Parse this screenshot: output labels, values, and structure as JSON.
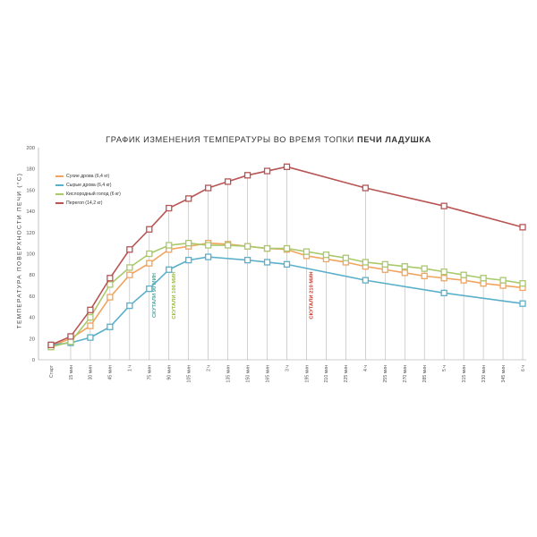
{
  "chart_data": {
    "type": "line",
    "title": "ГРАФИК ИЗМЕНЕНИЯ ТЕМПЕРАТУРЫ ВО ВРЕМЯ ТОПКИ",
    "title_bold": "ПЕЧИ ЛАДУШКА",
    "ylabel": "ТЕМПЕРАТУРА ПОВЕРХНОСТИ ПЕЧИ (°С)",
    "xlabel": "",
    "ylim": [
      0,
      200
    ],
    "yticks": [
      0,
      20,
      40,
      60,
      80,
      100,
      120,
      140,
      160,
      180,
      200
    ],
    "grid": "vertical lines at data points",
    "legend_position": "top-left",
    "x_ticks": [
      {
        "x": 0,
        "label": "Старт"
      },
      {
        "x": 15,
        "label": "15 мин"
      },
      {
        "x": 30,
        "label": "30 мин"
      },
      {
        "x": 45,
        "label": "45 мин"
      },
      {
        "x": 60,
        "label": "1 ч"
      },
      {
        "x": 75,
        "label": "75 мин"
      },
      {
        "x": 90,
        "label": "90 мин"
      },
      {
        "x": 105,
        "label": "105 мин"
      },
      {
        "x": 120,
        "label": "2 ч"
      },
      {
        "x": 135,
        "label": "135 мин"
      },
      {
        "x": 150,
        "label": "150 мин"
      },
      {
        "x": 165,
        "label": "165 мин"
      },
      {
        "x": 180,
        "label": "3 ч"
      },
      {
        "x": 195,
        "label": "195 мин"
      },
      {
        "x": 210,
        "label": "210 мин"
      },
      {
        "x": 225,
        "label": "225 мин"
      },
      {
        "x": 240,
        "label": "4 ч"
      },
      {
        "x": 255,
        "label": "255 мин"
      },
      {
        "x": 270,
        "label": "270 мин"
      },
      {
        "x": 285,
        "label": "285 мин"
      },
      {
        "x": 300,
        "label": "5 ч"
      },
      {
        "x": 315,
        "label": "315 мин"
      },
      {
        "x": 330,
        "label": "330 мин"
      },
      {
        "x": 345,
        "label": "345 мин"
      },
      {
        "x": 360,
        "label": "6 ч"
      }
    ],
    "series": [
      {
        "name": "Сухие дрова (6,4 кг)",
        "color": "#f0a45e",
        "points": [
          [
            0,
            13
          ],
          [
            15,
            20
          ],
          [
            30,
            32
          ],
          [
            45,
            59
          ],
          [
            60,
            80
          ],
          [
            75,
            91
          ],
          [
            90,
            104
          ],
          [
            105,
            107
          ],
          [
            120,
            110
          ],
          [
            135,
            109
          ],
          [
            150,
            107
          ],
          [
            165,
            105
          ],
          [
            180,
            104
          ],
          [
            195,
            98
          ],
          [
            210,
            95
          ],
          [
            225,
            92
          ],
          [
            240,
            88
          ],
          [
            255,
            85
          ],
          [
            270,
            82
          ],
          [
            285,
            79
          ],
          [
            300,
            77
          ],
          [
            315,
            75
          ],
          [
            330,
            72
          ],
          [
            345,
            70
          ],
          [
            360,
            68
          ]
        ]
      },
      {
        "name": "Сырые дрова (6,4 кг)",
        "color": "#5ab0c9",
        "points": [
          [
            0,
            14
          ],
          [
            15,
            16
          ],
          [
            30,
            21
          ],
          [
            45,
            31
          ],
          [
            60,
            51
          ],
          [
            75,
            67
          ],
          [
            90,
            85
          ],
          [
            105,
            94
          ],
          [
            120,
            97
          ],
          [
            150,
            94
          ],
          [
            165,
            92
          ],
          [
            180,
            90
          ],
          [
            240,
            75
          ],
          [
            300,
            63
          ],
          [
            360,
            53
          ]
        ]
      },
      {
        "name": "Кислородный голод (6 кг)",
        "color": "#a9c96b",
        "points": [
          [
            0,
            12
          ],
          [
            15,
            17
          ],
          [
            30,
            40
          ],
          [
            45,
            71
          ],
          [
            60,
            87
          ],
          [
            75,
            100
          ],
          [
            90,
            108
          ],
          [
            105,
            110
          ],
          [
            120,
            108
          ],
          [
            135,
            108
          ],
          [
            150,
            107
          ],
          [
            165,
            105
          ],
          [
            180,
            105
          ],
          [
            195,
            102
          ],
          [
            210,
            99
          ],
          [
            225,
            96
          ],
          [
            240,
            92
          ],
          [
            255,
            90
          ],
          [
            270,
            88
          ],
          [
            285,
            86
          ],
          [
            300,
            83
          ],
          [
            315,
            80
          ],
          [
            330,
            77
          ],
          [
            345,
            75
          ],
          [
            360,
            72
          ]
        ]
      },
      {
        "name": "Перегоп (14,2 кг)",
        "color": "#b85454",
        "points": [
          [
            0,
            14
          ],
          [
            15,
            22
          ],
          [
            30,
            47
          ],
          [
            45,
            77
          ],
          [
            60,
            104
          ],
          [
            75,
            123
          ],
          [
            90,
            143
          ],
          [
            105,
            152
          ],
          [
            120,
            162
          ],
          [
            135,
            168
          ],
          [
            150,
            174
          ],
          [
            165,
            178
          ],
          [
            180,
            182
          ],
          [
            240,
            162
          ],
          [
            300,
            145
          ],
          [
            360,
            125
          ]
        ]
      }
    ],
    "annotations": [
      {
        "x": 75,
        "label": "СКУТАЛИ 90 МИН",
        "color": "#4aa39a"
      },
      {
        "x": 90,
        "label": "СКУТАЛИ 100 МИН",
        "color": "#9bbb3a"
      },
      {
        "x": 195,
        "label": "СКУТАЛИ 210 МИН",
        "color": "#c0392b"
      }
    ]
  }
}
